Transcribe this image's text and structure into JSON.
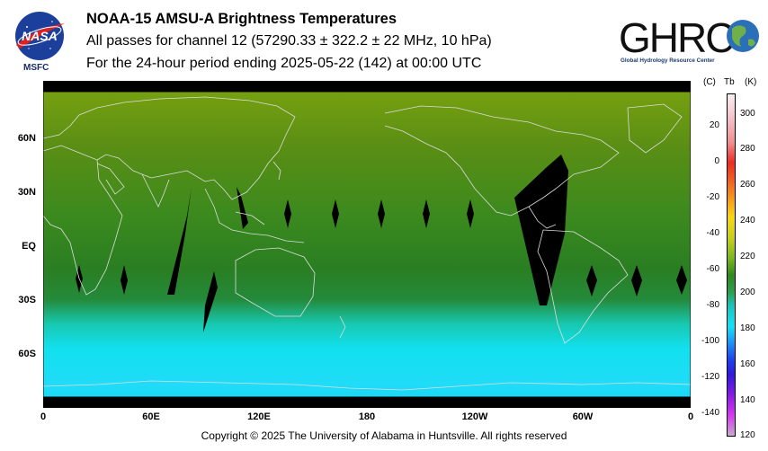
{
  "header": {
    "title": "NOAA-15 AMSU-A Brightness Temperatures",
    "subtitle": "All passes for channel 12 (57290.33 ± 322.2 ± 22 MHz, 10 hPa)",
    "period": "For the 24-hour period ending 2025-05-22 (142) at 00:00 UTC"
  },
  "logos": {
    "nasa_text": "NASA",
    "msfc": "MSFC",
    "ghrc_text": "GHRC",
    "ghrc_sub": "Global Hydrology Resource Center"
  },
  "map": {
    "lat_labels": [
      "60N",
      "30N",
      "EQ",
      "30S",
      "60S"
    ],
    "lon_labels": [
      "0",
      "60E",
      "120E",
      "180",
      "120W",
      "60W",
      "0"
    ]
  },
  "colorbar": {
    "unit_c": "(C)",
    "unit_tb": "Tb",
    "unit_k": "(K)",
    "celsius_ticks": [
      "20",
      "0",
      "-20",
      "-40",
      "-60",
      "-80",
      "-100",
      "-120",
      "-140"
    ],
    "kelvin_ticks": [
      "300",
      "280",
      "260",
      "240",
      "220",
      "200",
      "180",
      "160",
      "140",
      "120"
    ]
  },
  "footer": {
    "copyright": "Copyright © 2025 The University of Alabama in Huntsville.  All rights reserved"
  },
  "colors": {
    "field_north": "#6f9a10",
    "field_mid": "#2e7a22",
    "field_south": "#1ae0f0",
    "coastline": "#d8d8d8",
    "no_data": "#000000"
  }
}
